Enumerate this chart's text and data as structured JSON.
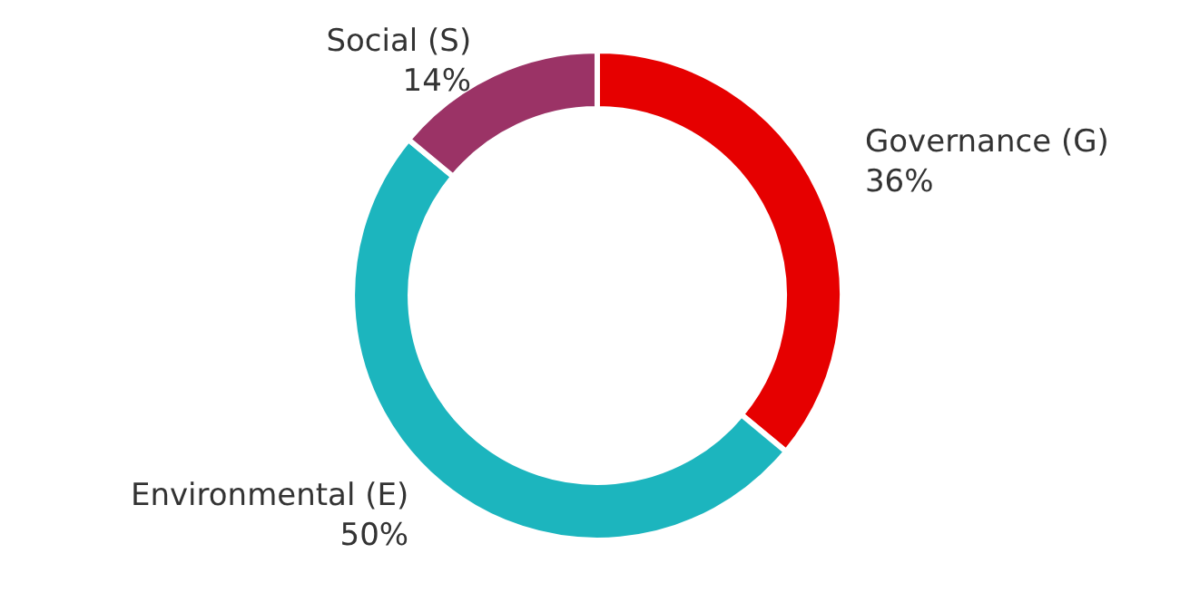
{
  "chart_data": {
    "type": "donut",
    "categories": [
      "Governance (G)",
      "Environmental (E)",
      "Social (S)"
    ],
    "values": [
      36,
      50,
      14
    ],
    "value_labels": [
      "36%",
      "50%",
      "14%"
    ],
    "colors": [
      "#e60000",
      "#1cb5be",
      "#9b3366"
    ],
    "legend": false
  }
}
